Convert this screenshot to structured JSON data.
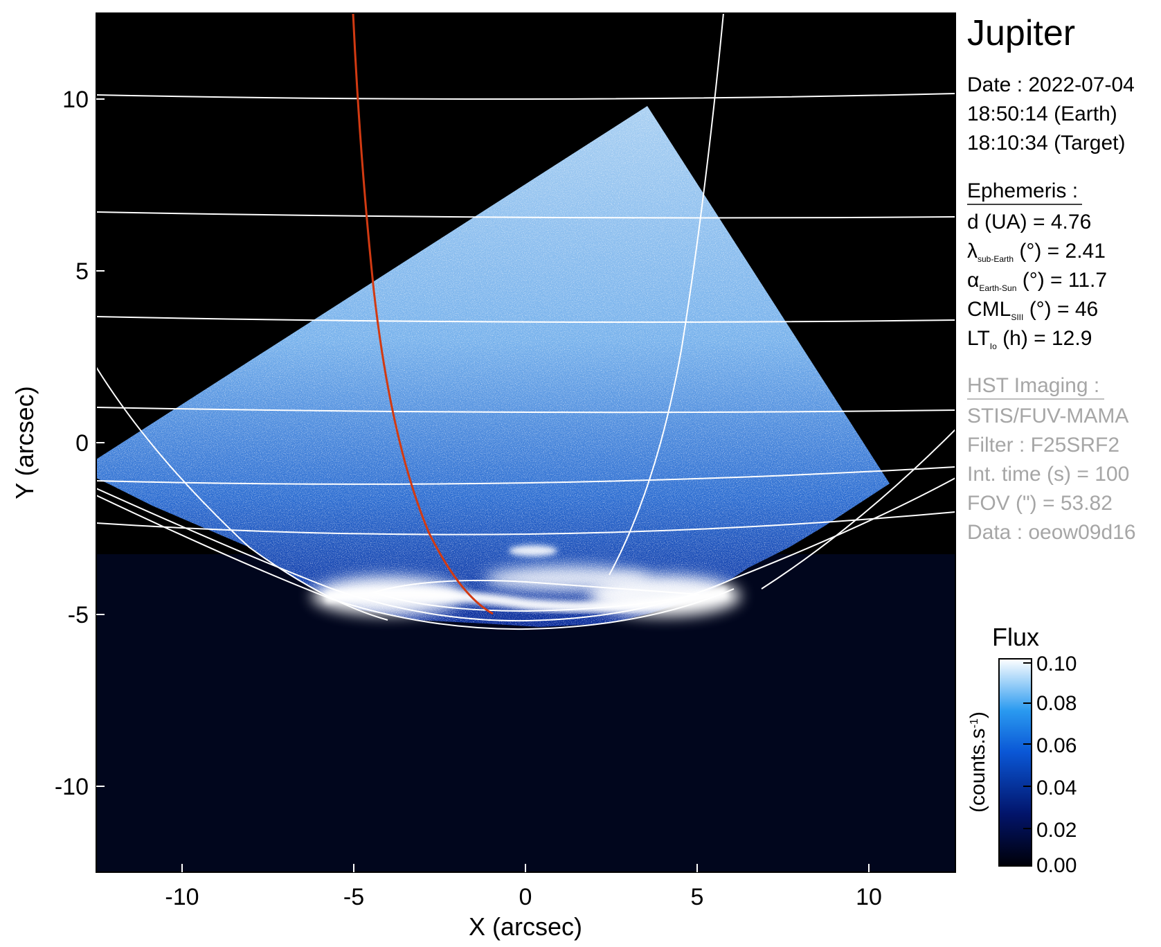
{
  "figure": {
    "title": "Jupiter",
    "date": "Date : 2022-07-04",
    "earth_time": "18:50:14 (Earth)",
    "target_time": "18:10:34 (Target)",
    "ephemeris": {
      "heading": "Ephemeris :",
      "d": "d (UA)    = 4.76",
      "lambda_symbol": "λ",
      "lambda_sub": "sub-Earth",
      "lambda_rest": " (°) = 2.41",
      "alpha_symbol": "α",
      "alpha_sub": "Earth-Sun",
      "alpha_rest": " (°) = 11.7",
      "cml_symbol": "CML",
      "cml_sub": "SIII",
      "cml_rest": " (°) = 46",
      "lt_symbol": "LT",
      "lt_sub": "Io",
      "lt_rest": " (h) = 12.9"
    },
    "hst": {
      "heading": "HST Imaging :",
      "instrument": "STIS/FUV-MAMA",
      "filter": "Filter : F25SRF2",
      "int_time": "Int. time (s) = 100",
      "fov": "FOV (\") = 53.82",
      "data": "Data : oeow09d16"
    }
  },
  "axes": {
    "xlabel": "X (arcsec)",
    "ylabel": "Y (arcsec)",
    "xlim": [
      -12.5,
      12.5
    ],
    "ylim": [
      -12.5,
      12.5
    ],
    "xticks": [
      "-10",
      "-5",
      "0",
      "5",
      "10"
    ],
    "yticks": [
      "10",
      "5",
      "0",
      "-5",
      "-10"
    ]
  },
  "colorbar": {
    "title": "Flux",
    "unit": "(counts.s",
    "unit_sup": "-1",
    "unit_end": ")",
    "ticks": [
      "0.10",
      "0.08",
      "0.06",
      "0.04",
      "0.02",
      "0.00"
    ],
    "range": [
      0.0,
      0.1
    ]
  },
  "colors": {
    "background": "#000000",
    "grid": "#ffffff",
    "io_footprint": "#d23a12",
    "cmap_low": "#000010",
    "cmap_mid": "#0a4fc8",
    "cmap_high": "#ffffff"
  }
}
